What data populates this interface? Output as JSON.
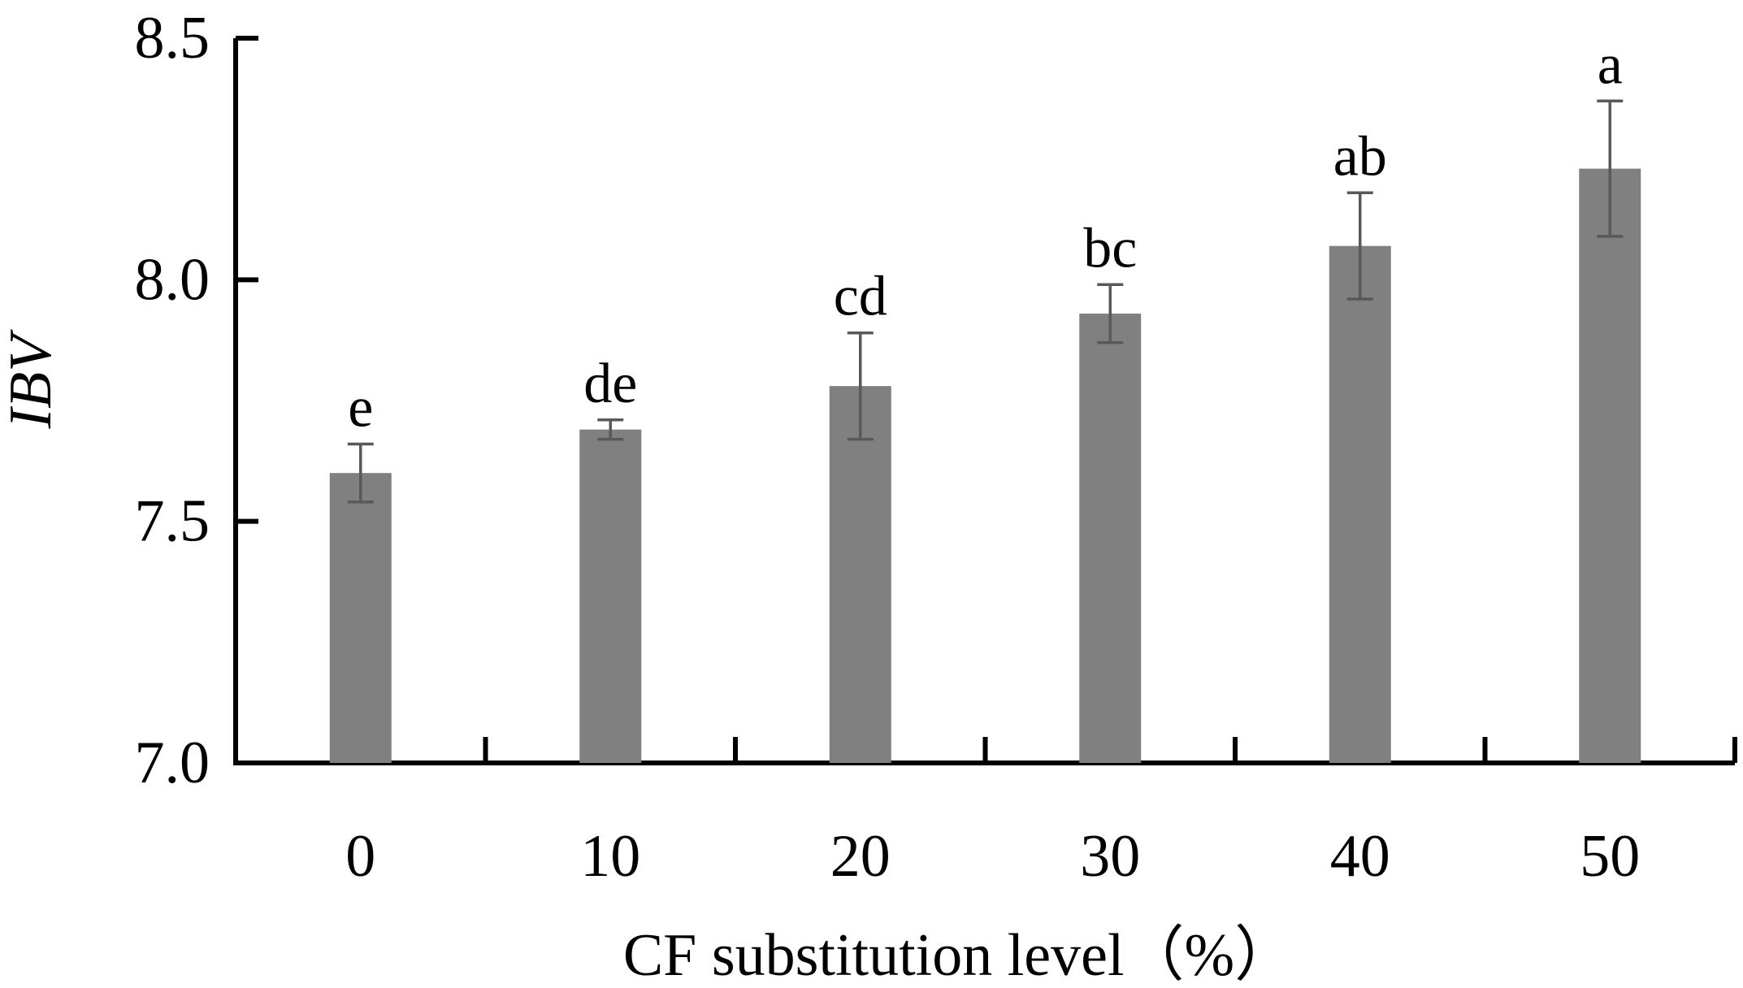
{
  "chart_data": {
    "type": "bar",
    "title": "",
    "xlabel": "CF substitution level（%）",
    "ylabel": "IBV",
    "categories": [
      "0",
      "10",
      "20",
      "30",
      "40",
      "50"
    ],
    "values": [
      7.6,
      7.69,
      7.78,
      7.93,
      8.07,
      8.23
    ],
    "errors": [
      0.06,
      0.02,
      0.11,
      0.06,
      0.11,
      0.14
    ],
    "significance_letters": [
      "e",
      "de",
      "cd",
      "bc",
      "ab",
      "a"
    ],
    "ylim": [
      7.0,
      8.5
    ],
    "yticks": [
      "7.0",
      "7.5",
      "8.0",
      "8.5"
    ],
    "bar_color": "#808080",
    "error_color": "#595959",
    "axis_color": "#000000",
    "grid": false,
    "legend": "none"
  }
}
